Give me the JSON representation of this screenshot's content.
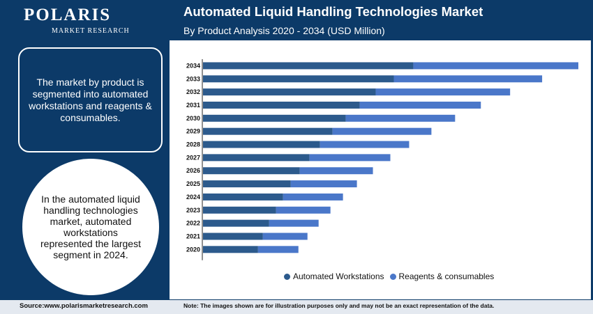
{
  "brand": {
    "name": "POLARIS",
    "tagline": "MARKET RESEARCH"
  },
  "header": {
    "title": "Automated Liquid Handling Technologies Market",
    "subtitle": "By Product Analysis 2020 - 2034 (USD Million)"
  },
  "side": {
    "box_text": "The market by product is segmented into automated workstations and reagents & consumables.",
    "circle_text": "In the automated liquid handling technologies market, automated workstations represented the largest segment in 2024."
  },
  "footer": {
    "source": "Source:www.polarismarketresearch.com",
    "note": "Note: The images shown are for illustration purposes only and may not be an exact representation of the data."
  },
  "colors": {
    "brand_navy": "#0c3a68",
    "automated_workstations": "#2c5a8c",
    "reagents_consumables": "#4a77c9"
  },
  "chart_data": {
    "type": "bar",
    "orientation": "horizontal",
    "stacked": true,
    "categories": [
      "2034",
      "2033",
      "2032",
      "2031",
      "2030",
      "2029",
      "2028",
      "2027",
      "2026",
      "2025",
      "2024",
      "2023",
      "2022",
      "2021",
      "2020"
    ],
    "series": [
      {
        "name": "Automated Workstations",
        "values": [
          302,
          274,
          248,
          225,
          205,
          186,
          168,
          153,
          139,
          126,
          115,
          105,
          95,
          86,
          79
        ]
      },
      {
        "name": "Reagents & consumables",
        "values": [
          237,
          213,
          193,
          174,
          157,
          142,
          128,
          116,
          105,
          95,
          86,
          78,
          71,
          64,
          58
        ]
      }
    ],
    "grid": false,
    "value_axis_labels": false,
    "legend_position": "bottom"
  }
}
